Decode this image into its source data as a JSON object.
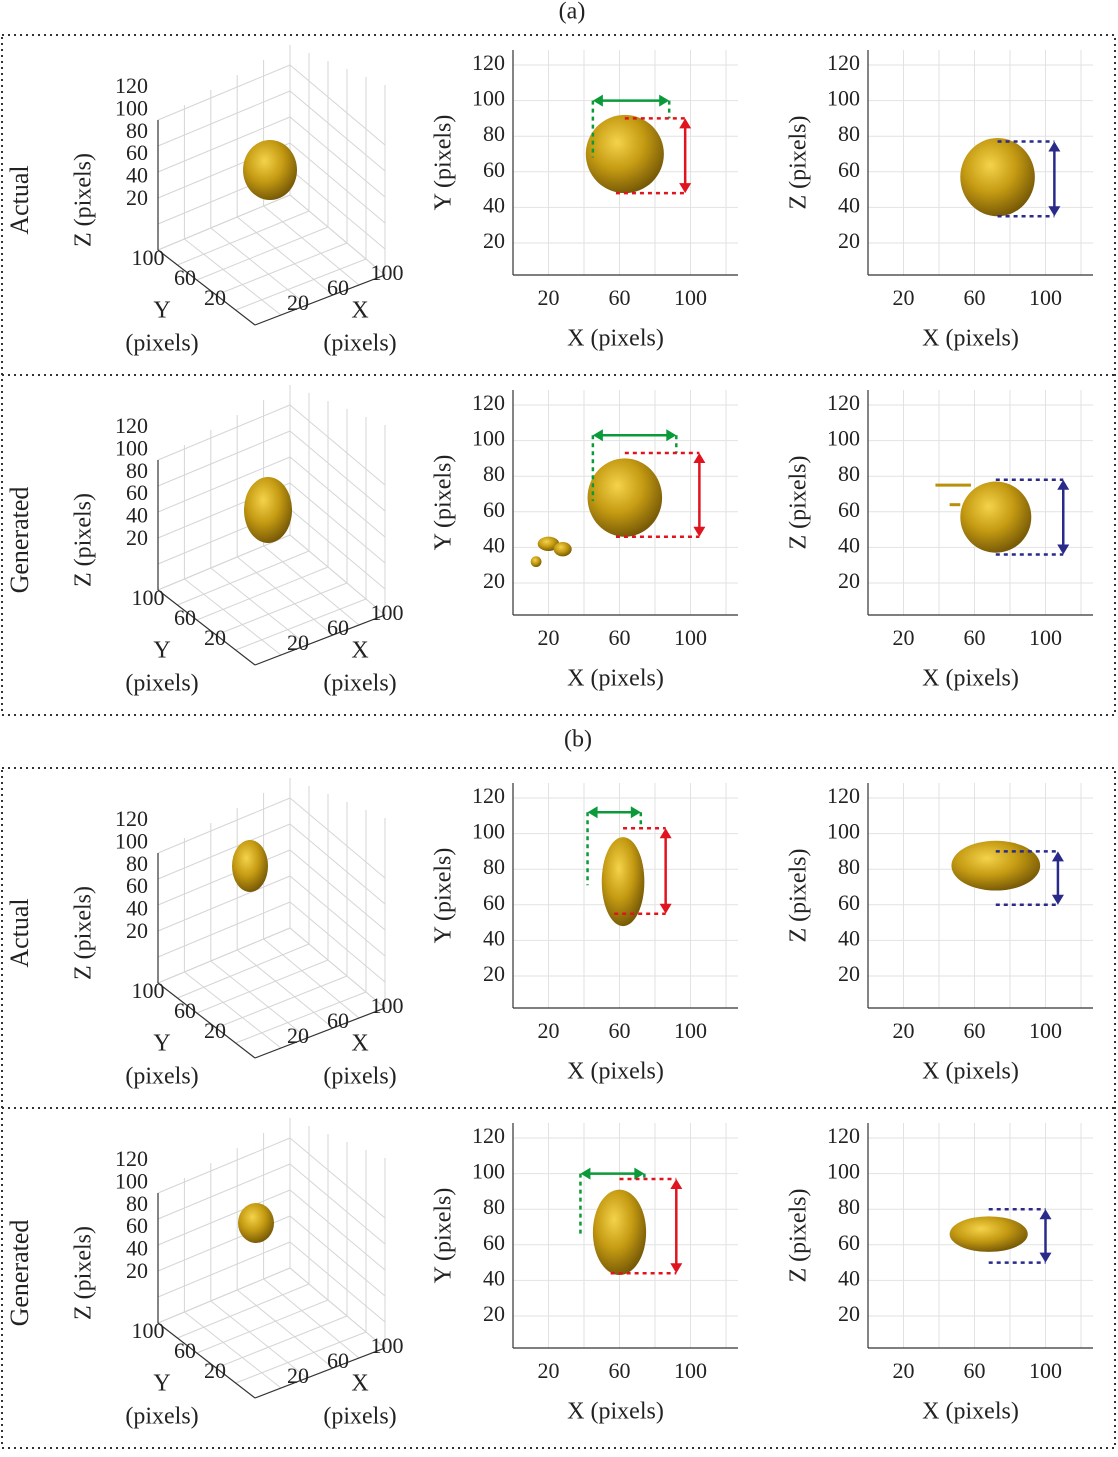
{
  "figure": {
    "groups": [
      {
        "label": "(a)",
        "rows": [
          {
            "label": "Actual"
          },
          {
            "label": "Generated"
          }
        ]
      },
      {
        "label": "(b)",
        "rows": [
          {
            "label": "Actual"
          },
          {
            "label": "Generated"
          }
        ]
      }
    ]
  },
  "colors": {
    "object": "#b8900c",
    "width_marker": "#0a9a3a",
    "height_marker": "#e0141e",
    "depth_marker": "#2a2a8a",
    "frame": "#333333"
  },
  "chart_data": {
    "type": "3d-volume-projections",
    "panels": [
      {
        "view": "3d",
        "xlabel": "X",
        "ylabel": "Y",
        "zlabel": "Z (pixels)",
        "unit_label": "(pixels)",
        "xticks": [
          "20",
          "60",
          "100"
        ],
        "yticks": [
          "100",
          "60",
          "20"
        ],
        "zticks": [
          "120",
          "100",
          "80",
          "60",
          "40",
          "20"
        ]
      },
      {
        "view": "xy",
        "xlabel": "X (pixels)",
        "ylabel": "Y (pixels)",
        "xticks": [
          "20",
          "60",
          "100"
        ],
        "yticks": [
          "120",
          "100",
          "80",
          "60",
          "40",
          "20"
        ],
        "xlim": [
          0,
          127
        ],
        "ylim": [
          0,
          127
        ]
      },
      {
        "view": "xz",
        "xlabel": "X (pixels)",
        "ylabel": "Z (pixels)",
        "xticks": [
          "20",
          "60",
          "100"
        ],
        "yticks": [
          "120",
          "100",
          "80",
          "60",
          "40",
          "20"
        ],
        "xlim": [
          0,
          127
        ],
        "ylim": [
          0,
          127
        ]
      }
    ],
    "grid": true
  }
}
